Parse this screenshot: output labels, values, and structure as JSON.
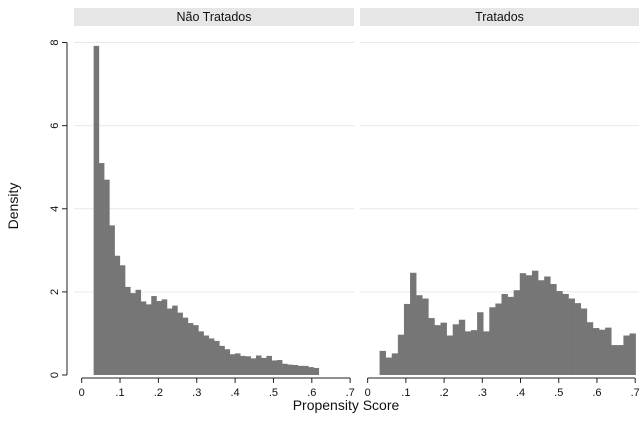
{
  "chart_data": {
    "type": "bar",
    "xlabel": "Propensity Score",
    "ylabel": "Density",
    "xlim": [
      -0.02,
      0.71
    ],
    "ylim": [
      0,
      8.35
    ],
    "x_ticks": [
      0,
      0.1,
      0.2,
      0.3,
      0.4,
      0.5,
      0.6,
      0.7
    ],
    "x_tick_labels": [
      "0",
      ".1",
      ".2",
      ".3",
      ".4",
      ".5",
      ".6",
      ".7"
    ],
    "y_ticks": [
      0,
      2,
      4,
      6,
      8
    ],
    "y_tick_labels": [
      "0",
      "2",
      "4",
      "6",
      "8"
    ],
    "grid": true,
    "bar_color": "#767676",
    "strip_color": "#e6e6e6",
    "gridline_color": "#e9e9e9",
    "panels": [
      {
        "label": "Não Tratados",
        "bin_start": 0.0312,
        "bin_width": 0.01365,
        "values": [
          7.92,
          5.1,
          4.7,
          3.6,
          2.87,
          2.64,
          2.12,
          1.97,
          2.05,
          1.77,
          1.7,
          1.9,
          1.78,
          1.82,
          1.6,
          1.67,
          1.5,
          1.38,
          1.25,
          1.2,
          1.05,
          0.95,
          0.88,
          0.82,
          0.7,
          0.62,
          0.5,
          0.52,
          0.46,
          0.45,
          0.4,
          0.47,
          0.41,
          0.46,
          0.35,
          0.36,
          0.27,
          0.25,
          0.24,
          0.22,
          0.22,
          0.19,
          0.17
        ]
      },
      {
        "label": "Tratados",
        "bin_start": 0.0312,
        "bin_width": 0.01595,
        "values": [
          0.58,
          0.42,
          0.52,
          0.97,
          1.71,
          2.46,
          1.92,
          1.84,
          1.37,
          1.2,
          1.26,
          0.95,
          1.22,
          1.33,
          1.05,
          1.08,
          1.51,
          1.05,
          1.63,
          1.72,
          1.95,
          1.88,
          2.04,
          2.45,
          2.4,
          2.51,
          2.28,
          2.37,
          2.19,
          2.02,
          1.95,
          1.84,
          1.73,
          1.6,
          1.27,
          1.13,
          1.09,
          1.14,
          0.72,
          0.72,
          0.95,
          1.0
        ]
      }
    ]
  }
}
